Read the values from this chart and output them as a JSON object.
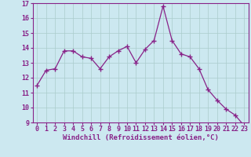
{
  "x": [
    0,
    1,
    2,
    3,
    4,
    5,
    6,
    7,
    8,
    9,
    10,
    11,
    12,
    13,
    14,
    15,
    16,
    17,
    18,
    19,
    20,
    21,
    22,
    23
  ],
  "y": [
    11.5,
    12.5,
    12.6,
    13.8,
    13.8,
    13.4,
    13.3,
    12.6,
    13.4,
    13.8,
    14.1,
    13.0,
    13.9,
    14.5,
    16.8,
    14.5,
    13.6,
    13.4,
    12.6,
    11.2,
    10.5,
    9.9,
    9.5,
    8.8
  ],
  "line_color": "#882288",
  "marker": "+",
  "marker_size": 4,
  "bg_color": "#cce8f0",
  "grid_color": "#aacccc",
  "xlabel": "Windchill (Refroidissement éolien,°C)",
  "ylim": [
    9,
    17
  ],
  "xlim": [
    -0.5,
    23.5
  ],
  "yticks": [
    9,
    10,
    11,
    12,
    13,
    14,
    15,
    16,
    17
  ],
  "xticks": [
    0,
    1,
    2,
    3,
    4,
    5,
    6,
    7,
    8,
    9,
    10,
    11,
    12,
    13,
    14,
    15,
    16,
    17,
    18,
    19,
    20,
    21,
    22,
    23
  ],
  "label_fontsize": 6.5,
  "tick_fontsize": 6
}
